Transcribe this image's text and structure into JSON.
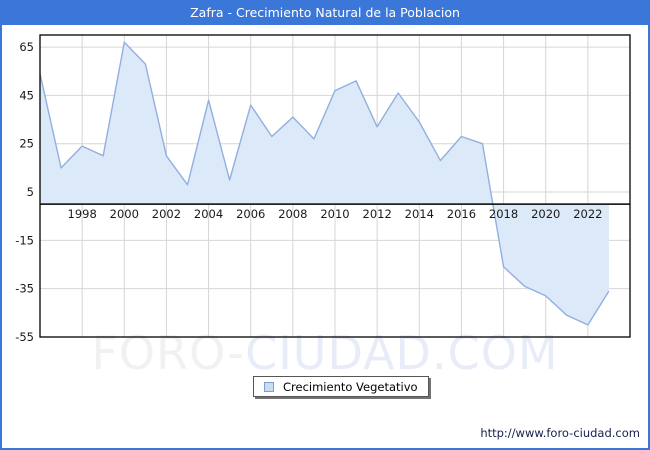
{
  "window": {
    "title": "Zafra - Crecimiento Natural de la Poblacion"
  },
  "watermark": {
    "part1": "FORO-",
    "part2": "CIUDAD.COM"
  },
  "legend": {
    "label": "Crecimiento Vegetativo"
  },
  "footer": {
    "url": "http://www.foro-ciudad.com"
  },
  "colors": {
    "titlebar": "#3b77d8",
    "frame_border": "#3b77d8",
    "plot_border": "#000000",
    "zero_axis": "#000000",
    "grid": "#d6d6d6",
    "line": "#92afdf",
    "fill": "#dce9f8",
    "tick_label": "#1a1a1a",
    "legend_swatch_fill": "#c8ddf4",
    "legend_swatch_border": "#7a9fd0"
  },
  "chart_data": {
    "type": "area",
    "title": "Zafra - Crecimiento Natural de la Poblacion",
    "x": [
      1996,
      1997,
      1998,
      1999,
      2000,
      2001,
      2002,
      2003,
      2004,
      2005,
      2006,
      2007,
      2008,
      2009,
      2010,
      2011,
      2012,
      2013,
      2014,
      2015,
      2016,
      2017,
      2018,
      2019,
      2020,
      2021,
      2022,
      2023
    ],
    "series": [
      {
        "name": "Crecimiento Vegetativo",
        "values": [
          54,
          15,
          24,
          20,
          67,
          58,
          20,
          8,
          43,
          10,
          41,
          28,
          36,
          27,
          47,
          51,
          32,
          46,
          34,
          18,
          28,
          25,
          -26,
          -34,
          -38,
          -46,
          -50,
          -36
        ]
      }
    ],
    "xlim": [
      1996,
      2024
    ],
    "ylim": [
      -55,
      70
    ],
    "y_ticks": [
      65,
      45,
      25,
      5,
      -15,
      -35,
      -55
    ],
    "x_ticks": [
      1998,
      2000,
      2002,
      2004,
      2006,
      2008,
      2010,
      2012,
      2014,
      2016,
      2018,
      2020,
      2022
    ],
    "baseline": 0,
    "grid": true,
    "legend_position": "bottom-center"
  }
}
